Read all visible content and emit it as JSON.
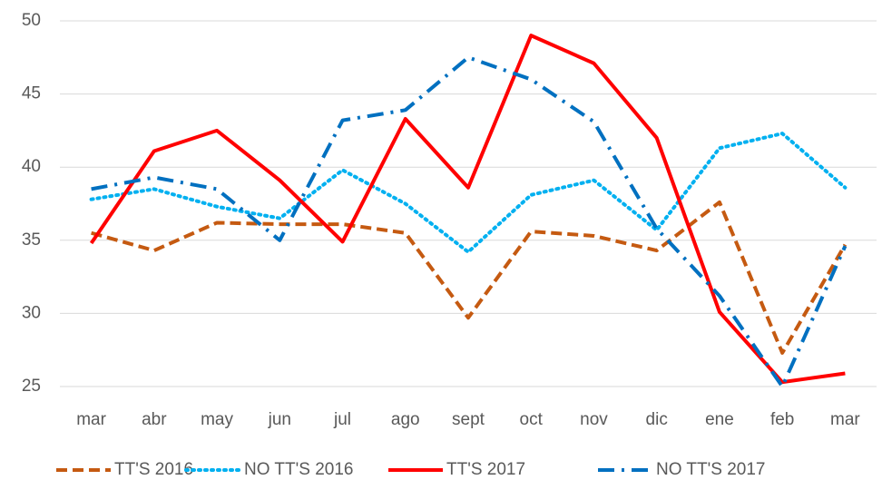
{
  "chart_data": {
    "type": "line",
    "categories": [
      "mar",
      "abr",
      "may",
      "jun",
      "jul",
      "ago",
      "sept",
      "oct",
      "nov",
      "dic",
      "ene",
      "feb",
      "mar"
    ],
    "series": [
      {
        "name": "TT'S 2016",
        "color": "#c55a11",
        "style": "dashed",
        "values": [
          35.5,
          34.3,
          36.2,
          36.1,
          36.1,
          35.5,
          29.7,
          35.6,
          35.3,
          34.3,
          37.6,
          27.3,
          34.7
        ]
      },
      {
        "name": "NO TT'S 2016",
        "color": "#00b0f0",
        "style": "dotted",
        "values": [
          37.8,
          38.5,
          37.3,
          36.5,
          39.8,
          37.5,
          34.2,
          38.1,
          39.1,
          35.7,
          41.3,
          42.3,
          38.6
        ]
      },
      {
        "name": "TT'S 2017",
        "color": "#ff0000",
        "style": "solid",
        "values": [
          34.8,
          41.1,
          42.5,
          39.1,
          34.9,
          43.3,
          38.6,
          49.0,
          47.1,
          42.0,
          30.1,
          25.3,
          25.9
        ]
      },
      {
        "name": "NO TT'S 2017",
        "color": "#0070c0",
        "style": "dashdot",
        "values": [
          38.5,
          39.3,
          38.5,
          35.0,
          43.2,
          43.9,
          47.5,
          46.0,
          43.1,
          35.8,
          31.2,
          25.0,
          34.6
        ]
      }
    ],
    "ylim": [
      25,
      50
    ],
    "yticks": [
      25,
      30,
      35,
      40,
      45,
      50
    ],
    "grid": true,
    "legend": "bottom"
  }
}
